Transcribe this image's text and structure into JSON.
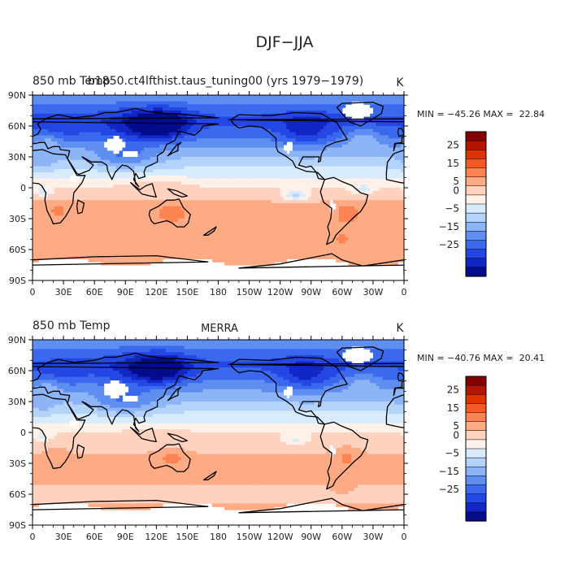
{
  "figure_title": "DJF−JJA",
  "colorbar_ticks": [
    "25",
    "15",
    "5",
    "0",
    "−5",
    "−15",
    "−25"
  ],
  "colors": {
    "levels": [
      "#840000",
      "#b31500",
      "#dd3300",
      "#f65a22",
      "#fc8452",
      "#fdab85",
      "#fed2bf",
      "#fdf1e9",
      "#d7ebfb",
      "#b3d3fa",
      "#8cb4f6",
      "#5f8ef1",
      "#3a69ee",
      "#2446e4",
      "#1126c4",
      "#030c8a"
    ],
    "land_outline": "#000000",
    "missing": "#ffffff"
  },
  "chart_data": [
    {
      "type": "heatmap",
      "title": "850 mb Temp",
      "title_overlap": "b1850.ct4lfthist.taus_tuning00 (yrs 1979−1979)",
      "center_label": "",
      "units": "K",
      "stats": "MIN = −45.26 MAX =  22.84",
      "min": -45.26,
      "max": 22.84,
      "xticks": [
        "0",
        "30E",
        "60E",
        "90E",
        "120E",
        "150E",
        "180",
        "150W",
        "120W",
        "90W",
        "60W",
        "30W",
        "0"
      ],
      "yticks": [
        "90N",
        "60N",
        "30N",
        "0",
        "30S",
        "60S",
        "90S"
      ],
      "xlim": [
        0,
        360
      ],
      "ylim": [
        -90,
        90
      ],
      "colorbar_levels": [
        -30,
        -25,
        -20,
        -15,
        -10,
        -5,
        -2,
        0,
        2,
        5,
        10,
        15,
        20,
        25,
        30
      ],
      "lat_profile": [
        [
          90,
          -10
        ],
        [
          75,
          -18
        ],
        [
          65,
          -22
        ],
        [
          55,
          -18
        ],
        [
          45,
          -13
        ],
        [
          35,
          -7
        ],
        [
          25,
          -3
        ],
        [
          15,
          -1
        ],
        [
          5,
          1
        ],
        [
          0,
          2
        ],
        [
          -10,
          4
        ],
        [
          -20,
          7
        ],
        [
          -30,
          7
        ],
        [
          -40,
          7
        ],
        [
          -50,
          6
        ],
        [
          -60,
          5
        ],
        [
          -70,
          6
        ],
        [
          -80,
          7
        ],
        [
          -90,
          4
        ]
      ],
      "anomalies": [
        {
          "lon": 125,
          "lat": 62,
          "dlon": 25,
          "dlat": 14,
          "amp": -18
        },
        {
          "lon": 100,
          "lat": 58,
          "dlon": 35,
          "dlat": 18,
          "amp": -8
        },
        {
          "lon": 90,
          "lat": 30,
          "dlon": 30,
          "dlat": 10,
          "amp": -10
        },
        {
          "lon": 265,
          "lat": 55,
          "dlon": 25,
          "dlat": 16,
          "amp": -10
        },
        {
          "lon": 30,
          "lat": 55,
          "dlon": 25,
          "dlat": 12,
          "amp": -4
        },
        {
          "lon": 320,
          "lat": 48,
          "dlon": 15,
          "dlat": 10,
          "amp": 8
        },
        {
          "lon": 15,
          "lat": 45,
          "dlon": 12,
          "dlat": 8,
          "amp": 6
        },
        {
          "lon": 135,
          "lat": -25,
          "dlon": 12,
          "dlat": 8,
          "amp": 8
        },
        {
          "lon": 305,
          "lat": -25,
          "dlon": 10,
          "dlat": 10,
          "amp": 7
        },
        {
          "lon": 25,
          "lat": -22,
          "dlon": 8,
          "dlat": 8,
          "amp": 5
        },
        {
          "lon": 255,
          "lat": -8,
          "dlon": 12,
          "dlat": 5,
          "amp": -6
        },
        {
          "lon": 320,
          "lat": -2,
          "dlon": 10,
          "dlat": 4,
          "amp": -4
        },
        {
          "lon": 10,
          "lat": -4,
          "dlon": 8,
          "dlat": 4,
          "amp": -4
        },
        {
          "lon": 120,
          "lat": 2,
          "dlon": 30,
          "dlat": 6,
          "amp": 2
        },
        {
          "lon": 10,
          "lat": 25,
          "dlon": 15,
          "dlat": 8,
          "amp": -4
        },
        {
          "lon": 300,
          "lat": -50,
          "dlon": 10,
          "dlat": 8,
          "amp": 5
        }
      ],
      "missing_regions": [
        {
          "lon": 80,
          "lat": 42,
          "dlon": 10,
          "dlat": 8
        },
        {
          "lon": 95,
          "lat": 33,
          "dlon": 8,
          "dlat": 4
        },
        {
          "lon": 315,
          "lat": 75,
          "dlon": 14,
          "dlat": 8
        },
        {
          "lon": 248,
          "lat": 40,
          "dlon": 4,
          "dlat": 6
        },
        {
          "lon": 290,
          "lat": -18,
          "dlon": 3,
          "dlat": 6
        },
        {
          "lon": 40,
          "lat": 10,
          "dlon": 4,
          "dlat": 4
        }
      ],
      "antarctic_edge": -72
    },
    {
      "type": "heatmap",
      "title": "850 mb Temp",
      "title_overlap": "",
      "center_label": "MERRA",
      "units": "K",
      "stats": "MIN = −40.76 MAX =  20.41",
      "min": -40.76,
      "max": 20.41,
      "xticks": [
        "0",
        "30E",
        "60E",
        "90E",
        "120E",
        "150E",
        "180",
        "150W",
        "120W",
        "90W",
        "60W",
        "30W",
        "0"
      ],
      "yticks": [
        "90N",
        "60N",
        "30N",
        "0",
        "30S",
        "60S",
        "90S"
      ],
      "xlim": [
        0,
        360
      ],
      "ylim": [
        -90,
        90
      ],
      "colorbar_levels": [
        -30,
        -25,
        -20,
        -15,
        -10,
        -5,
        -2,
        0,
        2,
        5,
        10,
        15,
        20,
        25,
        30
      ],
      "lat_profile": [
        [
          90,
          -10
        ],
        [
          75,
          -18
        ],
        [
          65,
          -21
        ],
        [
          55,
          -17
        ],
        [
          45,
          -12
        ],
        [
          35,
          -7
        ],
        [
          25,
          -3
        ],
        [
          15,
          -1
        ],
        [
          5,
          1
        ],
        [
          0,
          2
        ],
        [
          -10,
          3
        ],
        [
          -20,
          5
        ],
        [
          -30,
          6
        ],
        [
          -40,
          6
        ],
        [
          -50,
          5
        ],
        [
          -60,
          4
        ],
        [
          -70,
          5
        ],
        [
          -80,
          7
        ],
        [
          -90,
          4
        ]
      ],
      "anomalies": [
        {
          "lon": 125,
          "lat": 62,
          "dlon": 25,
          "dlat": 14,
          "amp": -17
        },
        {
          "lon": 100,
          "lat": 58,
          "dlon": 35,
          "dlat": 18,
          "amp": -7
        },
        {
          "lon": 90,
          "lat": 30,
          "dlon": 30,
          "dlat": 10,
          "amp": -10
        },
        {
          "lon": 265,
          "lat": 55,
          "dlon": 25,
          "dlat": 16,
          "amp": -10
        },
        {
          "lon": 30,
          "lat": 55,
          "dlon": 25,
          "dlat": 12,
          "amp": -4
        },
        {
          "lon": 320,
          "lat": 48,
          "dlon": 15,
          "dlat": 10,
          "amp": 6
        },
        {
          "lon": 15,
          "lat": 45,
          "dlon": 12,
          "dlat": 8,
          "amp": 5
        },
        {
          "lon": 135,
          "lat": -25,
          "dlon": 12,
          "dlat": 8,
          "amp": 7
        },
        {
          "lon": 305,
          "lat": -25,
          "dlon": 10,
          "dlat": 10,
          "amp": 6
        },
        {
          "lon": 25,
          "lat": -22,
          "dlon": 8,
          "dlat": 8,
          "amp": 4
        },
        {
          "lon": 255,
          "lat": -8,
          "dlon": 12,
          "dlat": 5,
          "amp": -3
        },
        {
          "lon": 10,
          "lat": -4,
          "dlon": 8,
          "dlat": 4,
          "amp": -3
        },
        {
          "lon": 120,
          "lat": 2,
          "dlon": 30,
          "dlat": 6,
          "amp": 1
        },
        {
          "lon": 10,
          "lat": 25,
          "dlon": 15,
          "dlat": 8,
          "amp": -3
        },
        {
          "lon": 300,
          "lat": -50,
          "dlon": 10,
          "dlat": 8,
          "amp": 4
        }
      ],
      "missing_regions": [
        {
          "lon": 80,
          "lat": 42,
          "dlon": 12,
          "dlat": 8
        },
        {
          "lon": 95,
          "lat": 33,
          "dlon": 8,
          "dlat": 4
        },
        {
          "lon": 315,
          "lat": 75,
          "dlon": 14,
          "dlat": 8
        },
        {
          "lon": 248,
          "lat": 40,
          "dlon": 4,
          "dlat": 6
        },
        {
          "lon": 290,
          "lat": -18,
          "dlon": 3,
          "dlat": 6
        },
        {
          "lon": 40,
          "lat": 10,
          "dlon": 4,
          "dlat": 4
        }
      ],
      "antarctic_edge": -72
    }
  ]
}
